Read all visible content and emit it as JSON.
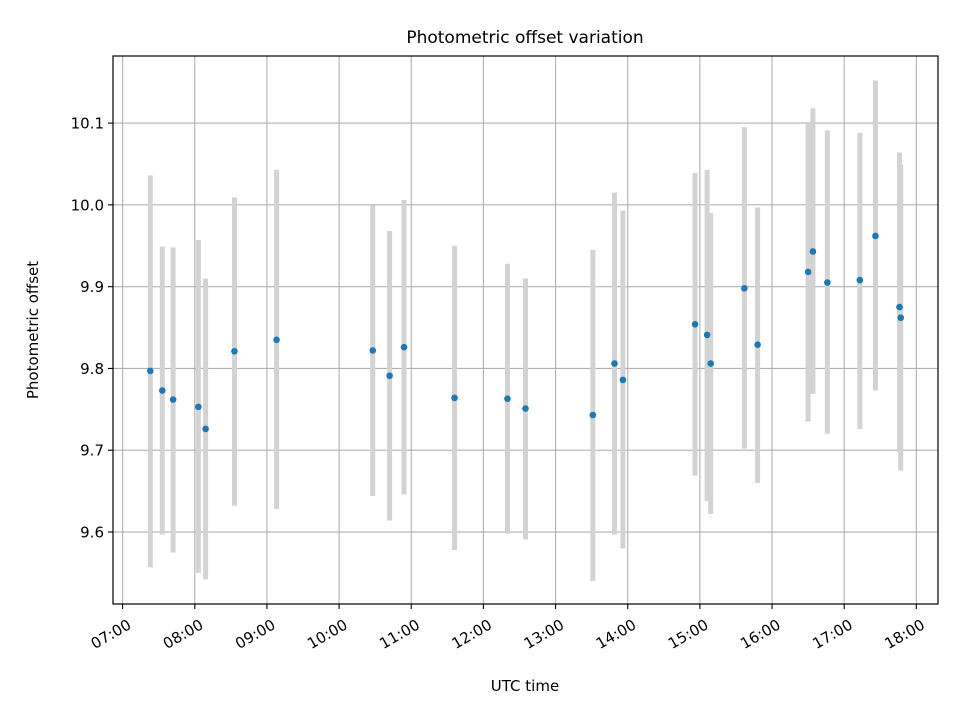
{
  "chart_data": {
    "type": "scatter",
    "title": "Photometric offset variation",
    "xlabel": "UTC time",
    "ylabel": "Photometric offset",
    "x_ticks": [
      "07:00",
      "08:00",
      "09:00",
      "10:00",
      "11:00",
      "12:00",
      "13:00",
      "14:00",
      "15:00",
      "16:00",
      "17:00",
      "18:00"
    ],
    "y_ticks": [
      "9.6",
      "9.7",
      "9.8",
      "9.9",
      "10.0",
      "10.1"
    ],
    "xlim": [
      "06:52",
      "18:18"
    ],
    "ylim": [
      9.512,
      10.182
    ],
    "grid": true,
    "colors": {
      "point": "#1f77b4",
      "errorbar": "#d3d3d3",
      "grid": "#b0b0b0"
    },
    "series": [
      {
        "points": [
          {
            "x": "07:23",
            "y": 9.797,
            "ylow": 9.557,
            "yhigh": 10.036
          },
          {
            "x": "07:33",
            "y": 9.773,
            "ylow": 9.597,
            "yhigh": 9.949
          },
          {
            "x": "07:42",
            "y": 9.762,
            "ylow": 9.575,
            "yhigh": 9.948
          },
          {
            "x": "08:03",
            "y": 9.753,
            "ylow": 9.55,
            "yhigh": 9.957
          },
          {
            "x": "08:09",
            "y": 9.726,
            "ylow": 9.542,
            "yhigh": 9.91
          },
          {
            "x": "08:33",
            "y": 9.821,
            "ylow": 9.632,
            "yhigh": 10.009
          },
          {
            "x": "09:08",
            "y": 9.835,
            "ylow": 9.628,
            "yhigh": 10.043
          },
          {
            "x": "10:28",
            "y": 9.822,
            "ylow": 9.644,
            "yhigh": 9.999
          },
          {
            "x": "10:42",
            "y": 9.791,
            "ylow": 9.614,
            "yhigh": 9.968
          },
          {
            "x": "10:54",
            "y": 9.826,
            "ylow": 9.646,
            "yhigh": 10.006
          },
          {
            "x": "11:36",
            "y": 9.764,
            "ylow": 9.578,
            "yhigh": 9.95
          },
          {
            "x": "12:20",
            "y": 9.763,
            "ylow": 9.598,
            "yhigh": 9.928
          },
          {
            "x": "12:35",
            "y": 9.751,
            "ylow": 9.591,
            "yhigh": 9.91
          },
          {
            "x": "13:31",
            "y": 9.743,
            "ylow": 9.54,
            "yhigh": 9.945
          },
          {
            "x": "13:49",
            "y": 9.806,
            "ylow": 9.597,
            "yhigh": 10.015
          },
          {
            "x": "13:56",
            "y": 9.786,
            "ylow": 9.58,
            "yhigh": 9.993
          },
          {
            "x": "14:56",
            "y": 9.854,
            "ylow": 9.669,
            "yhigh": 10.039
          },
          {
            "x": "15:06",
            "y": 9.841,
            "ylow": 9.638,
            "yhigh": 10.043
          },
          {
            "x": "15:09",
            "y": 9.806,
            "ylow": 9.622,
            "yhigh": 9.99
          },
          {
            "x": "15:37",
            "y": 9.898,
            "ylow": 9.702,
            "yhigh": 10.095
          },
          {
            "x": "15:48",
            "y": 9.829,
            "ylow": 9.66,
            "yhigh": 9.997
          },
          {
            "x": "16:30",
            "y": 9.918,
            "ylow": 9.735,
            "yhigh": 10.1
          },
          {
            "x": "16:34",
            "y": 9.943,
            "ylow": 9.769,
            "yhigh": 10.118
          },
          {
            "x": "16:46",
            "y": 9.905,
            "ylow": 9.72,
            "yhigh": 10.091
          },
          {
            "x": "17:13",
            "y": 9.908,
            "ylow": 9.726,
            "yhigh": 10.088
          },
          {
            "x": "17:26",
            "y": 9.962,
            "ylow": 9.773,
            "yhigh": 10.152
          },
          {
            "x": "17:46",
            "y": 9.875,
            "ylow": 9.698,
            "yhigh": 10.064
          },
          {
            "x": "17:47",
            "y": 9.862,
            "ylow": 9.675,
            "yhigh": 10.049
          }
        ]
      }
    ]
  }
}
